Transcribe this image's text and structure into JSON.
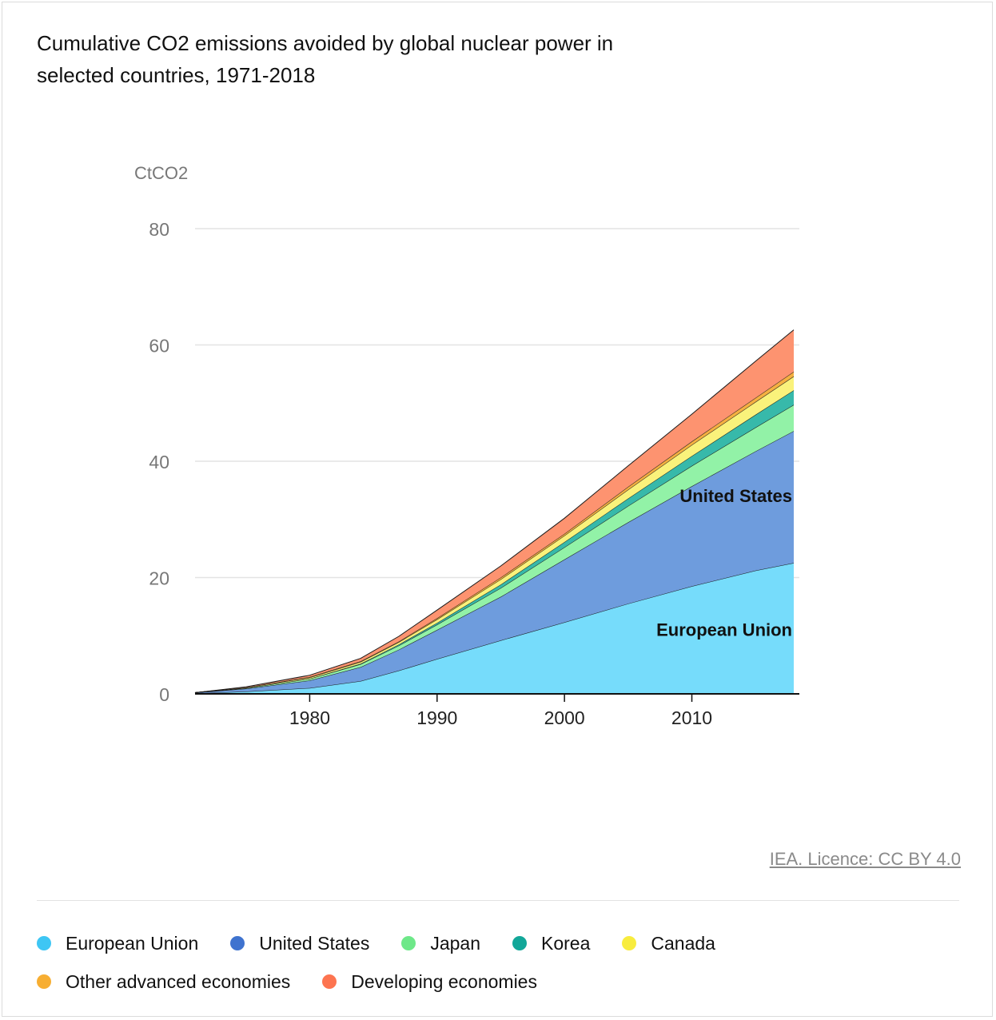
{
  "title": {
    "line1": "Cumulative CO2 emissions avoided by global nuclear power in",
    "line2": "selected countries, 1971-2018"
  },
  "credit": "IEA. Licence: CC BY 4.0",
  "chart_data": {
    "type": "area",
    "stacked": true,
    "title": "Cumulative CO2 emissions avoided by global nuclear power in selected countries, 1971-2018",
    "ylabel": "CtCO2",
    "xlabel": "",
    "xlim": [
      1971,
      2018
    ],
    "ylim": [
      0,
      80
    ],
    "yticks": [
      0,
      20,
      40,
      60,
      80
    ],
    "xticks": [
      1980,
      1990,
      2000,
      2010
    ],
    "grid": true,
    "legend_position": "bottom",
    "x": [
      1971,
      1975,
      1980,
      1984,
      1987,
      1990,
      1995,
      2000,
      2005,
      2010,
      2015,
      2018
    ],
    "series": [
      {
        "name": "European Union",
        "color": "#76dcfb",
        "values": [
          0.1,
          0.4,
          1.0,
          2.2,
          4.0,
          6.0,
          9.2,
          12.3,
          15.5,
          18.5,
          21.2,
          22.5
        ]
      },
      {
        "name": "United States",
        "color": "#6e9cdd",
        "values": [
          0.1,
          0.5,
          1.3,
          2.4,
          3.6,
          5.0,
          7.5,
          10.8,
          14.0,
          17.2,
          20.5,
          22.7
        ]
      },
      {
        "name": "Japan",
        "color": "#92f2a7",
        "values": [
          0.0,
          0.1,
          0.3,
          0.5,
          0.7,
          0.9,
          1.5,
          2.1,
          2.8,
          3.5,
          4.1,
          4.5
        ]
      },
      {
        "name": "Korea",
        "color": "#37b9aa",
        "values": [
          0.0,
          0.0,
          0.0,
          0.1,
          0.2,
          0.3,
          0.6,
          0.9,
          1.3,
          1.7,
          2.2,
          2.5
        ]
      },
      {
        "name": "Canada",
        "color": "#faf27b",
        "values": [
          0.0,
          0.1,
          0.2,
          0.3,
          0.4,
          0.6,
          0.9,
          1.1,
          1.5,
          1.9,
          2.2,
          2.4
        ]
      },
      {
        "name": "Other advanced economies",
        "color": "#f5b041",
        "values": [
          0.0,
          0.0,
          0.1,
          0.1,
          0.1,
          0.2,
          0.3,
          0.3,
          0.5,
          0.6,
          0.7,
          0.8
        ]
      },
      {
        "name": "Developing economies",
        "color": "#fd9370",
        "values": [
          0.0,
          0.1,
          0.3,
          0.5,
          0.9,
          1.4,
          2.0,
          2.7,
          3.6,
          4.7,
          6.3,
          7.2
        ]
      }
    ],
    "annotations": [
      {
        "text": "United States",
        "x": 2018,
        "y": 33
      },
      {
        "text": "European Union",
        "x": 2018,
        "y": 10
      }
    ]
  },
  "legend": [
    {
      "label": "European Union",
      "color": "#3ec6f4"
    },
    {
      "label": "United States",
      "color": "#3f73cf"
    },
    {
      "label": "Japan",
      "color": "#6ee889"
    },
    {
      "label": "Korea",
      "color": "#12a799"
    },
    {
      "label": "Canada",
      "color": "#f8ec3e"
    },
    {
      "label": "Other advanced economies",
      "color": "#f7ae32"
    },
    {
      "label": "Developing economies",
      "color": "#fd7450"
    }
  ]
}
